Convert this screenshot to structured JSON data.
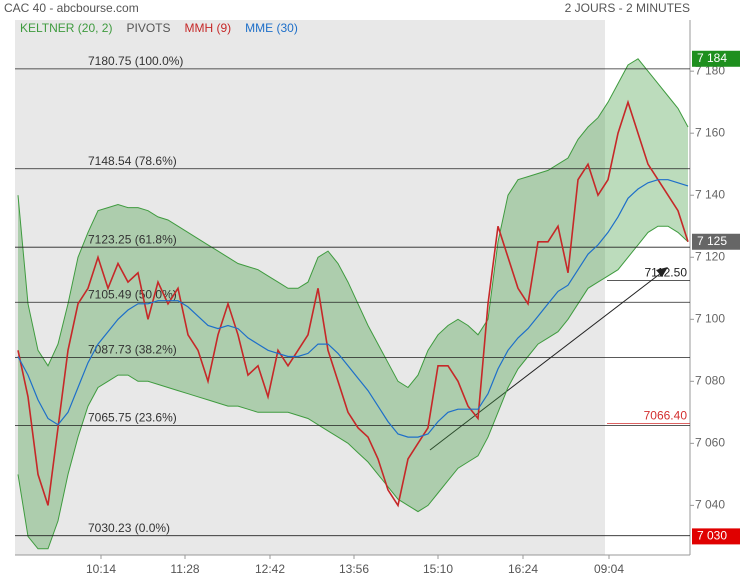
{
  "chart_data": {
    "type": "line",
    "title": "CAC 40 - abcbourse.com",
    "subtitle": "2 JOURS - 2 MINUTES",
    "legend_extra": {
      "name": "PIVOTS",
      "color": "#555555"
    },
    "xlim": [
      -0.3,
      67.2
    ],
    "xticks": [
      {
        "value": 8.3,
        "label": "10:14"
      },
      {
        "value": 16.7,
        "label": "11:28"
      },
      {
        "value": 25.2,
        "label": "12:42"
      },
      {
        "value": 33.6,
        "label": "13:56"
      },
      {
        "value": 42,
        "label": "15:10"
      },
      {
        "value": 50.5,
        "label": "16:24"
      },
      {
        "value": 59.1,
        "label": "09:04"
      }
    ],
    "ylim": [
      7024,
      7196.5
    ],
    "yticks": [
      {
        "value": 7040,
        "label": "7 040"
      },
      {
        "value": 7060,
        "label": "7 060"
      },
      {
        "value": 7080,
        "label": "7 080"
      },
      {
        "value": 7100,
        "label": "7 100"
      },
      {
        "value": 7120,
        "label": "7 120"
      },
      {
        "value": 7140,
        "label": "7 140"
      },
      {
        "value": 7160,
        "label": "7 160"
      },
      {
        "value": 7180,
        "label": "7 180"
      }
    ],
    "keltner": {
      "name": "KELTNER (20, 2)",
      "color": "#3f9b3f",
      "upper": [
        7140,
        7105,
        7090,
        7085,
        7092,
        7105,
        7120,
        7128,
        7135,
        7136,
        7137,
        7136,
        7136,
        7135,
        7133,
        7132,
        7130,
        7128,
        7126,
        7124,
        7122,
        7120,
        7118,
        7117,
        7116,
        7114,
        7112,
        7110,
        7110,
        7112,
        7120,
        7122,
        7118,
        7112,
        7105,
        7098,
        7092,
        7086,
        7080,
        7078,
        7082,
        7090,
        7095,
        7098,
        7100,
        7098,
        7095,
        7100,
        7125,
        7140,
        7145,
        7146,
        7147,
        7148,
        7150,
        7152,
        7158,
        7162,
        7165,
        7170,
        7176,
        7182,
        7184,
        7180,
        7176,
        7172,
        7168,
        7162
      ],
      "lower": [
        7050,
        7030,
        7026,
        7026,
        7035,
        7050,
        7062,
        7072,
        7078,
        7080,
        7082,
        7082,
        7080,
        7080,
        7079,
        7078,
        7077,
        7076,
        7075,
        7074,
        7073,
        7072,
        7072,
        7071,
        7070,
        7070,
        7070,
        7070,
        7069,
        7068,
        7066,
        7064,
        7062,
        7060,
        7057,
        7054,
        7050,
        7046,
        7042,
        7040,
        7038,
        7040,
        7044,
        7048,
        7052,
        7054,
        7056,
        7062,
        7070,
        7078,
        7084,
        7088,
        7092,
        7094,
        7096,
        7100,
        7105,
        7110,
        7112,
        7114,
        7116,
        7120,
        7124,
        7128,
        7130,
        7130,
        7128,
        7125
      ]
    },
    "series": [
      {
        "name": "MMH (9)",
        "color": "#c62828",
        "values": [
          7090,
          7075,
          7050,
          7040,
          7065,
          7090,
          7105,
          7110,
          7120,
          7110,
          7118,
          7112,
          7115,
          7100,
          7112,
          7105,
          7110,
          7095,
          7090,
          7080,
          7095,
          7105,
          7095,
          7082,
          7085,
          7075,
          7090,
          7085,
          7090,
          7095,
          7110,
          7090,
          7080,
          7070,
          7065,
          7062,
          7055,
          7045,
          7040,
          7055,
          7060,
          7065,
          7085,
          7085,
          7080,
          7072,
          7068,
          7105,
          7130,
          7120,
          7110,
          7105,
          7125,
          7125,
          7130,
          7115,
          7145,
          7150,
          7140,
          7145,
          7160,
          7170,
          7160,
          7150,
          7145,
          7140,
          7135,
          7125
        ]
      },
      {
        "name": "MME (30)",
        "color": "#1e6fc9",
        "values": [
          7088,
          7082,
          7074,
          7068,
          7066,
          7070,
          7078,
          7086,
          7092,
          7096,
          7100,
          7103,
          7105,
          7105,
          7106,
          7106,
          7106,
          7104,
          7101,
          7098,
          7097,
          7098,
          7097,
          7094,
          7092,
          7090,
          7089,
          7088,
          7088,
          7089,
          7092,
          7092,
          7089,
          7085,
          7081,
          7077,
          7072,
          7067,
          7063,
          7062,
          7062,
          7063,
          7067,
          7070,
          7071,
          7071,
          7071,
          7076,
          7084,
          7090,
          7094,
          7097,
          7101,
          7105,
          7109,
          7111,
          7116,
          7121,
          7124,
          7128,
          7133,
          7139,
          7142,
          7144,
          7145,
          7145,
          7144,
          7143
        ]
      }
    ],
    "pivots": [
      {
        "value": 7180.75,
        "label": "7180.75 (100.0%)"
      },
      {
        "value": 7148.54,
        "label": "7148.54 (78.6%)"
      },
      {
        "value": 7123.25,
        "label": "7123.25 (61.8%)"
      },
      {
        "value": 7105.49,
        "label": "7105.49 (50.0%)"
      },
      {
        "value": 7087.73,
        "label": "7087.73 (38.2%)"
      },
      {
        "value": 7065.75,
        "label": "7065.75 (23.6%)"
      },
      {
        "value": 7030.23,
        "label": "7030.23 (0.0%)"
      }
    ],
    "annotations": [
      {
        "value": 7112.5,
        "label": "7112.50",
        "color": "#222222"
      },
      {
        "value": 7066.4,
        "label": "7066.40",
        "color": "#d32f2f"
      }
    ],
    "price_tags": [
      {
        "value": 7184,
        "label": "7 184",
        "color": "#1e8f1e"
      },
      {
        "value": 7125,
        "label": "7 125",
        "color": "#666666"
      },
      {
        "value": 7030,
        "label": "7 030",
        "color": "#e00000"
      }
    ]
  }
}
